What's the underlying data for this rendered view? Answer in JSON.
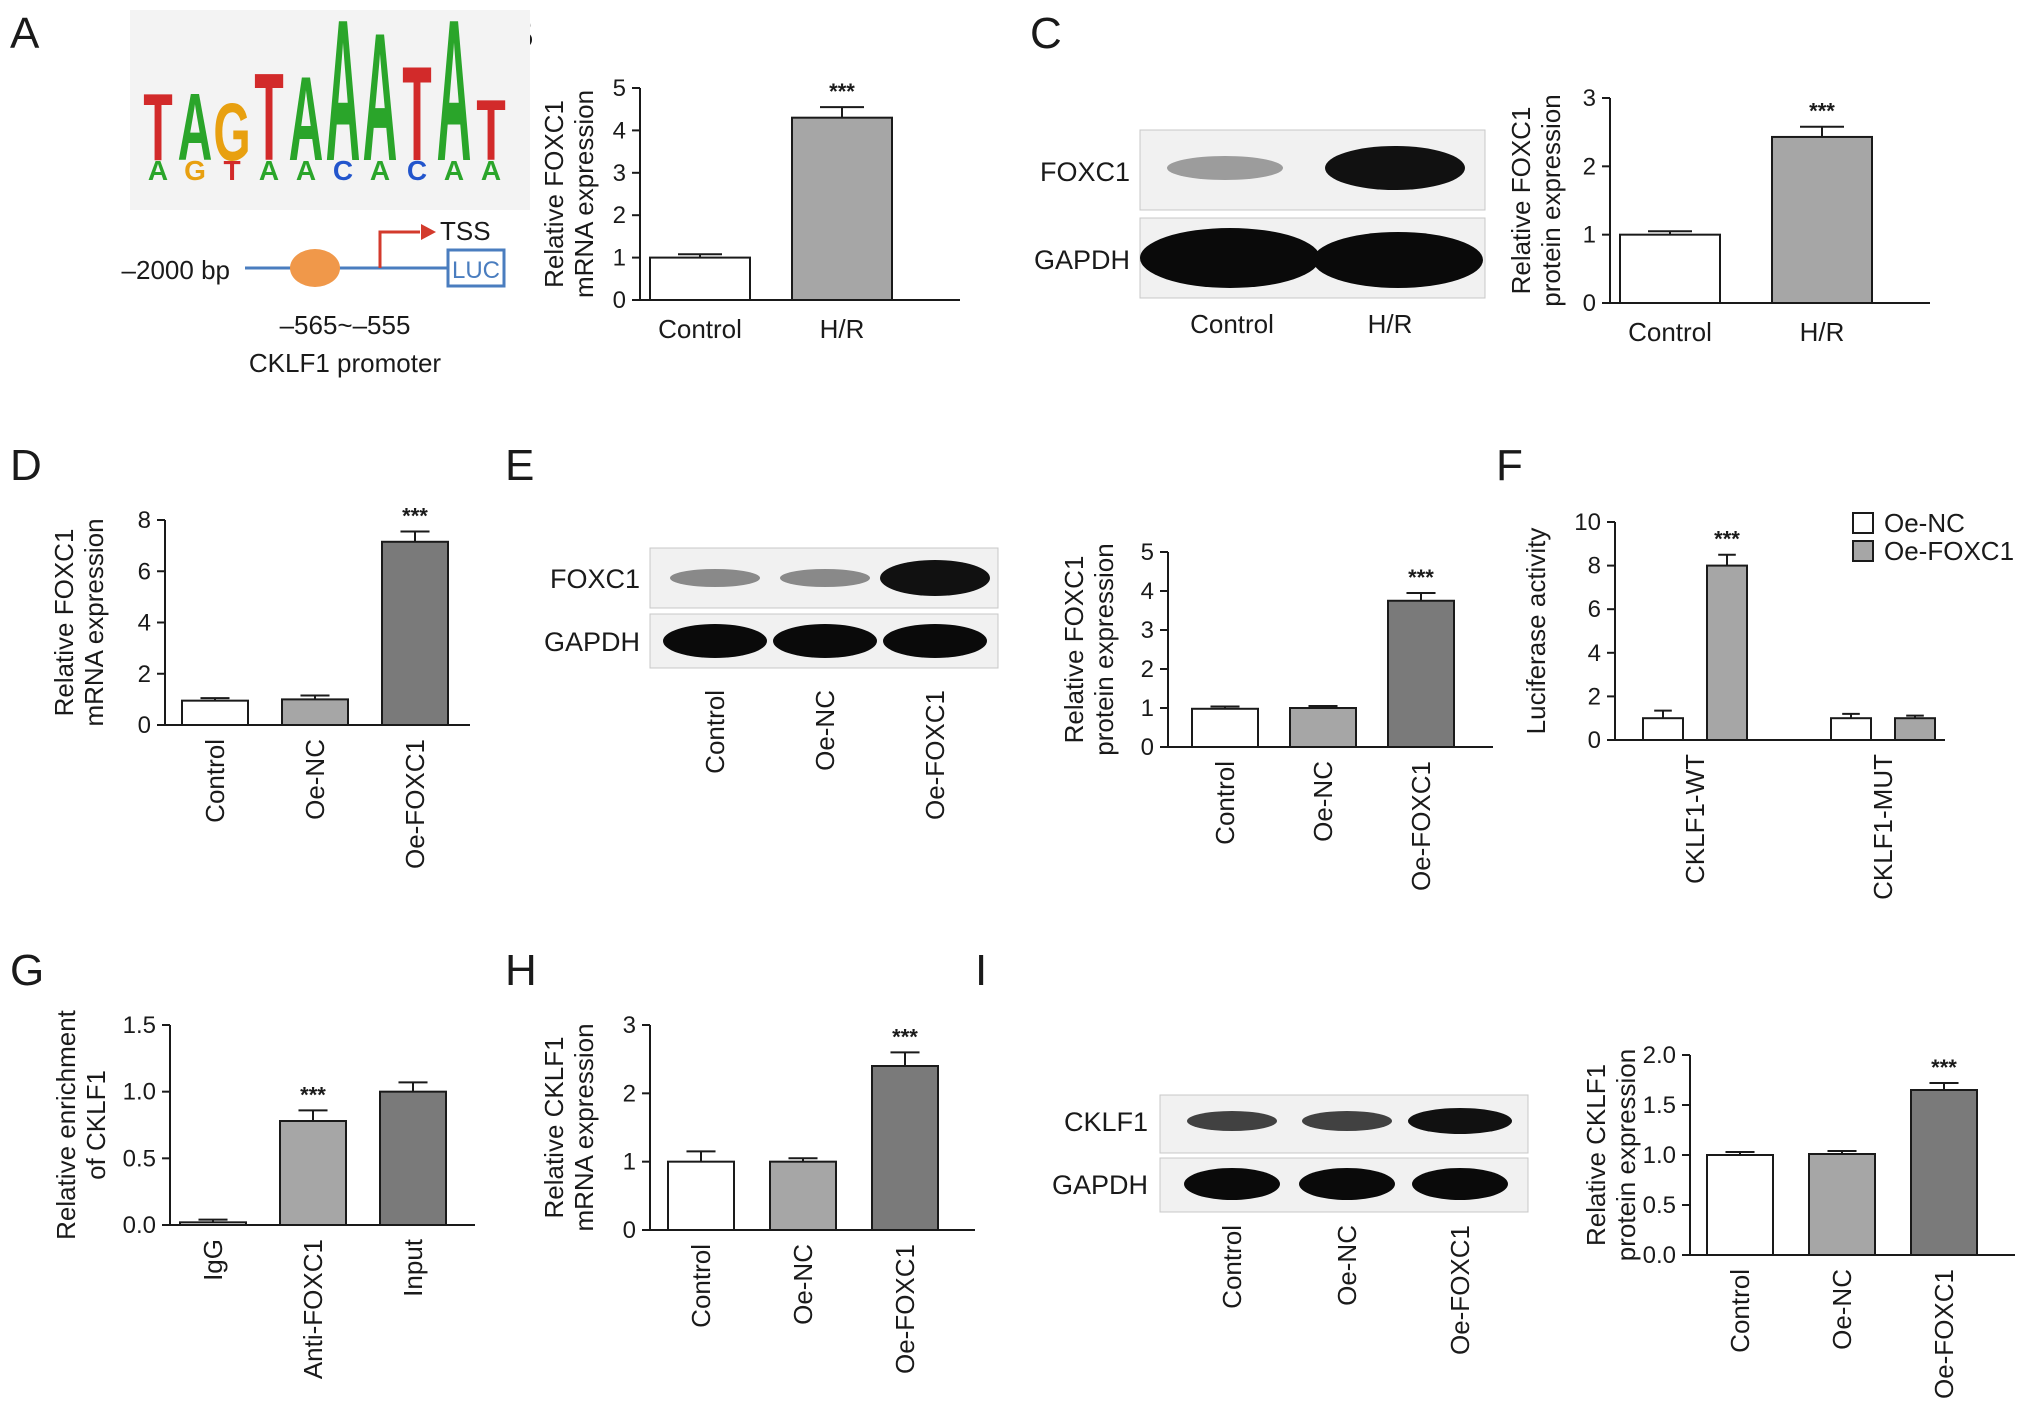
{
  "panel_labels": [
    "A",
    "B",
    "C",
    "D",
    "E",
    "F",
    "G",
    "H",
    "I"
  ],
  "panel_a": {
    "motif_top": [
      "T",
      "A",
      "G",
      "T",
      "A",
      "A",
      "A",
      "T",
      "A",
      "T"
    ],
    "motif_bottom": [
      "A",
      "G",
      "T",
      "A",
      "A",
      "C",
      "A",
      "C",
      "A",
      "A"
    ],
    "upstream_label": "–2000 bp",
    "tss_label": "TSS",
    "luc_label": "LUC",
    "site_label": "–565~–555",
    "promoter_label": "CKLF1 promoter"
  },
  "blots": {
    "C": {
      "rows": [
        "FOXC1",
        "GAPDH"
      ],
      "lanes": [
        "Control",
        "H/R"
      ]
    },
    "E": {
      "rows": [
        "FOXC1",
        "GAPDH"
      ],
      "lanes": [
        "Control",
        "Oe-NC",
        "Oe-FOXC1"
      ]
    },
    "I": {
      "rows": [
        "CKLF1",
        "GAPDH"
      ],
      "lanes": [
        "Control",
        "Oe-NC",
        "Oe-FOXC1"
      ]
    }
  },
  "legend_F": [
    "Oe-NC",
    "Oe-FOXC1"
  ],
  "colors": {
    "white_bar": "#ffffff",
    "light_gray_bar": "#a6a6a6",
    "dark_gray_bar": "#7a7a7a",
    "axis": "#1a1a1a"
  },
  "chart_data": [
    {
      "panel": "B",
      "type": "bar",
      "categories": [
        "Control",
        "H/R"
      ],
      "values": [
        1.0,
        4.3
      ],
      "errors": [
        0.08,
        0.25
      ],
      "significance": [
        "",
        "***"
      ],
      "ylabel": [
        "Relative FOXC1",
        "mRNA expression"
      ],
      "ylim": [
        0,
        5
      ],
      "yticks": [
        0,
        1,
        2,
        3,
        4,
        5
      ]
    },
    {
      "panel": "C",
      "type": "bar",
      "categories": [
        "Control",
        "H/R"
      ],
      "values": [
        1.0,
        2.43
      ],
      "errors": [
        0.05,
        0.15
      ],
      "significance": [
        "",
        "***"
      ],
      "ylabel": [
        "Relative FOXC1",
        "protein expression"
      ],
      "ylim": [
        0,
        3
      ],
      "yticks": [
        0,
        1,
        2,
        3
      ]
    },
    {
      "panel": "D",
      "type": "bar",
      "categories": [
        "Control",
        "Oe-NC",
        "Oe-FOXC1"
      ],
      "values": [
        0.95,
        1.0,
        7.15
      ],
      "errors": [
        0.1,
        0.15,
        0.4
      ],
      "significance": [
        "",
        "",
        "***"
      ],
      "ylabel": [
        "Relative FOXC1",
        "mRNA expression"
      ],
      "ylim": [
        0,
        8
      ],
      "yticks": [
        0,
        2,
        4,
        6,
        8
      ]
    },
    {
      "panel": "E",
      "type": "bar",
      "categories": [
        "Control",
        "Oe-NC",
        "Oe-FOXC1"
      ],
      "values": [
        0.98,
        1.0,
        3.75
      ],
      "errors": [
        0.06,
        0.05,
        0.2
      ],
      "significance": [
        "",
        "",
        "***"
      ],
      "ylabel": [
        "Relative FOXC1",
        "protein expression"
      ],
      "ylim": [
        0,
        5
      ],
      "yticks": [
        0,
        1,
        2,
        3,
        4,
        5
      ]
    },
    {
      "panel": "F",
      "type": "bar",
      "categories": [
        "CKLF1-WT",
        "CKLF1-MUT"
      ],
      "series": [
        {
          "name": "Oe-NC",
          "values": [
            1.0,
            1.0
          ],
          "errors": [
            0.35,
            0.2
          ]
        },
        {
          "name": "Oe-FOXC1",
          "values": [
            8.0,
            1.0
          ],
          "errors": [
            0.5,
            0.12
          ]
        }
      ],
      "significance": [
        [
          "",
          "***"
        ],
        [
          "",
          ""
        ]
      ],
      "ylabel": [
        "Luciferase activity"
      ],
      "ylim": [
        0,
        10
      ],
      "yticks": [
        0,
        2,
        4,
        6,
        8,
        10
      ],
      "legend": "top-right"
    },
    {
      "panel": "G",
      "type": "bar",
      "categories": [
        "IgG",
        "Anti-FOXC1",
        "Input"
      ],
      "values": [
        0.02,
        0.78,
        1.0
      ],
      "errors": [
        0.02,
        0.08,
        0.07
      ],
      "significance": [
        "",
        "***",
        ""
      ],
      "ylabel": [
        "Relative enrichment",
        "of CKLF1"
      ],
      "ylim": [
        0,
        1.5
      ],
      "yticks": [
        0.0,
        0.5,
        1.0,
        1.5
      ]
    },
    {
      "panel": "H",
      "type": "bar",
      "categories": [
        "Control",
        "Oe-NC",
        "Oe-FOXC1"
      ],
      "values": [
        1.0,
        1.0,
        2.4
      ],
      "errors": [
        0.15,
        0.05,
        0.2
      ],
      "significance": [
        "",
        "",
        "***"
      ],
      "ylabel": [
        "Relative CKLF1",
        "mRNA expression"
      ],
      "ylim": [
        0,
        3
      ],
      "yticks": [
        0,
        1,
        2,
        3
      ]
    },
    {
      "panel": "I",
      "type": "bar",
      "categories": [
        "Control",
        "Oe-NC",
        "Oe-FOXC1"
      ],
      "values": [
        1.0,
        1.01,
        1.65
      ],
      "errors": [
        0.03,
        0.03,
        0.07
      ],
      "significance": [
        "",
        "",
        "***"
      ],
      "ylabel": [
        "Relative CKLF1",
        "protein expression"
      ],
      "ylim": [
        0,
        2.0
      ],
      "yticks": [
        0.0,
        0.5,
        1.0,
        1.5,
        2.0
      ]
    }
  ]
}
